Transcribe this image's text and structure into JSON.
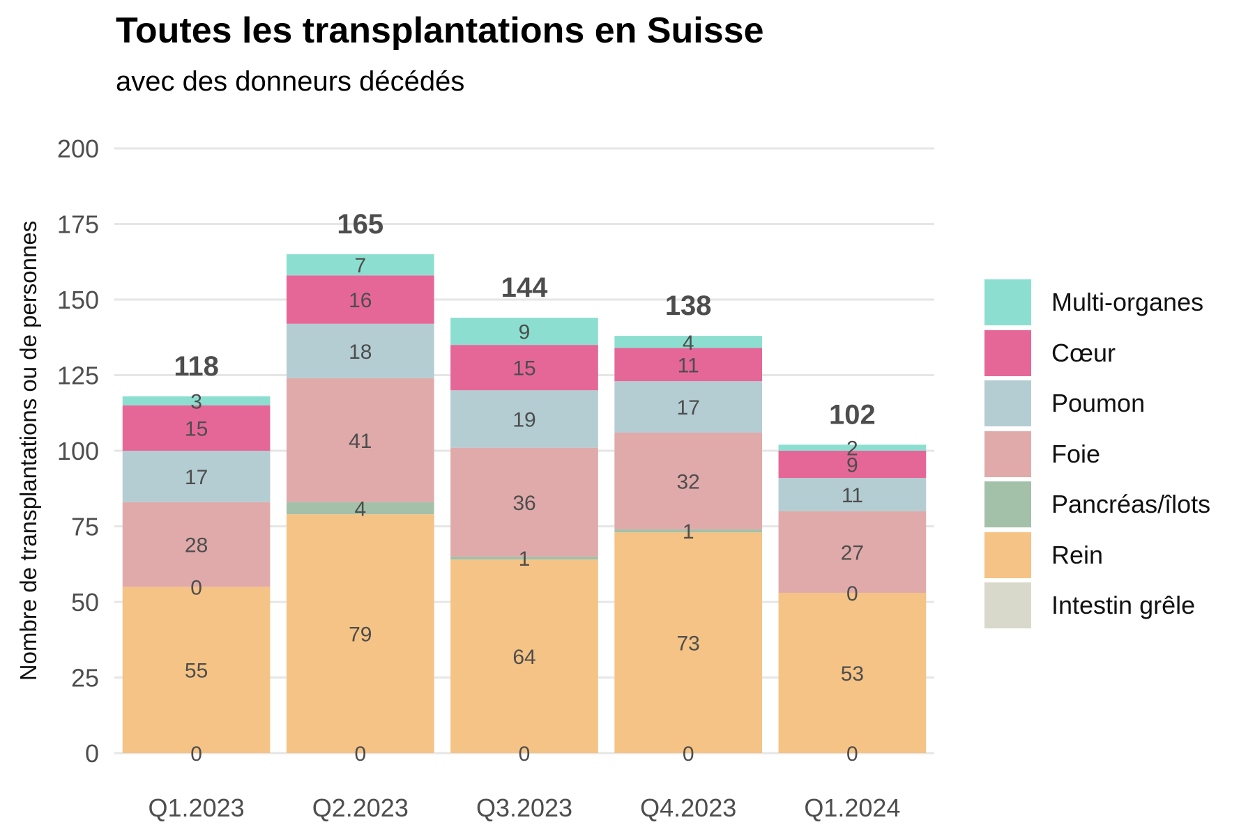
{
  "chart_data": {
    "type": "bar",
    "stacked": true,
    "title": "Toutes les transplantations en Suisse",
    "subtitle": "avec des donneurs décédés",
    "xlabel": "",
    "ylabel": "Nombre de transplantations ou de personnes",
    "ylim": [
      0,
      200
    ],
    "yticks": [
      0,
      25,
      50,
      75,
      100,
      125,
      150,
      175,
      200
    ],
    "grid": true,
    "legend_position": "right",
    "categories": [
      "Q1.2023",
      "Q2.2023",
      "Q3.2023",
      "Q4.2023",
      "Q1.2024"
    ],
    "totals": [
      118,
      165,
      144,
      138,
      102
    ],
    "series": [
      {
        "name": "Intestin grêle",
        "color": "#d9d9cb",
        "values": [
          0,
          0,
          0,
          0,
          0
        ]
      },
      {
        "name": "Rein",
        "color": "#f5c385",
        "values": [
          55,
          79,
          64,
          73,
          53
        ]
      },
      {
        "name": "Pancréas/îlots",
        "color": "#a3c0a8",
        "values": [
          0,
          4,
          1,
          1,
          0
        ]
      },
      {
        "name": "Foie",
        "color": "#e0aaaa",
        "values": [
          28,
          41,
          36,
          32,
          27
        ]
      },
      {
        "name": "Poumon",
        "color": "#b4cdd2",
        "values": [
          17,
          18,
          19,
          17,
          11
        ]
      },
      {
        "name": "Cœur",
        "color": "#e56797",
        "values": [
          15,
          16,
          15,
          11,
          9
        ]
      },
      {
        "name": "Multi-organes",
        "color": "#8cdfd0",
        "values": [
          3,
          7,
          9,
          4,
          2
        ]
      }
    ]
  }
}
